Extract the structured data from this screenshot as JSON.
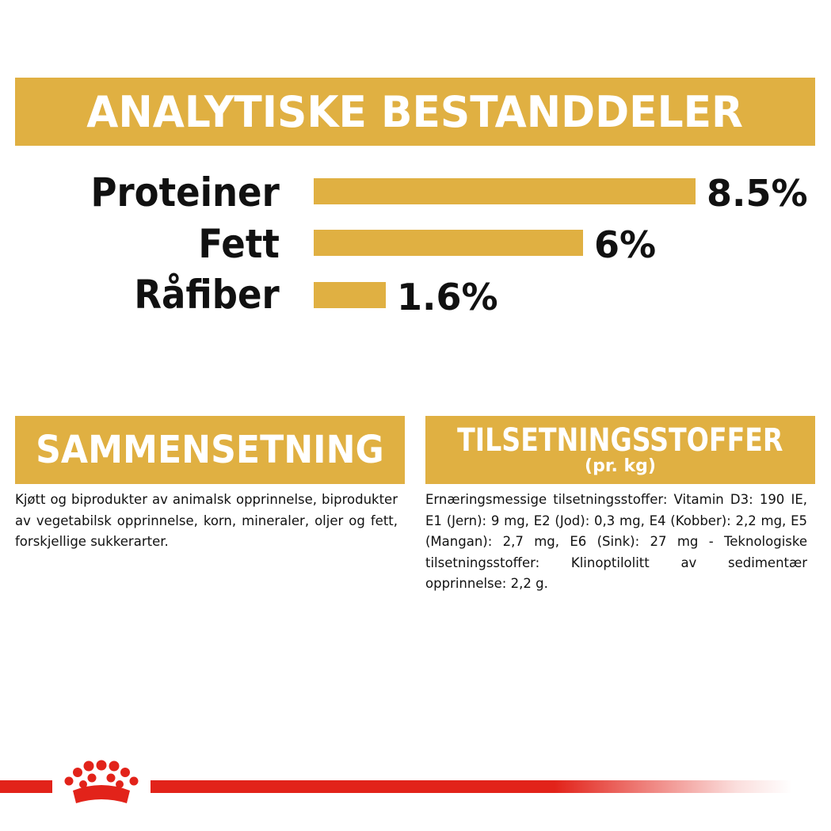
{
  "header": {
    "title": "ANALYTISKE BESTANDDELER"
  },
  "nutrients": [
    {
      "label": "Proteiner",
      "value": "8.5%",
      "percent": 8.5
    },
    {
      "label": "Fett",
      "value": "6%",
      "percent": 6
    },
    {
      "label": "Råfiber",
      "value": "1.6%",
      "percent": 1.6
    }
  ],
  "composition": {
    "title": "SAMMENSETNING",
    "text": "Kjøtt og biprodukter av animalsk opprinnelse, biprodukter av vegetabilsk opprinnelse, korn, mineraler, oljer og fett, forskjellige sukkerarter."
  },
  "additives": {
    "title": "TILSETNINGSSTOFFER",
    "subtitle": "(pr. kg)",
    "text": "Ernæringsmessige tilsetningsstoffer: Vitamin D3: 190 IE, E1 (Jern): 9 mg, E2 (Jod): 0,3 mg, E4 (Kobber): 2,2 mg, E5 (Mangan): 2,7 mg, E6 (Sink): 27 mg - Teknologiske tilsetningsstoffer: Klinoptilolitt av sedimentær opprinnelse: 2,2 g."
  },
  "colors": {
    "accent": "#e0b042",
    "brand_red": "#e2231a",
    "text": "#111111"
  },
  "footer": {
    "logo_icon": "crown-icon"
  }
}
